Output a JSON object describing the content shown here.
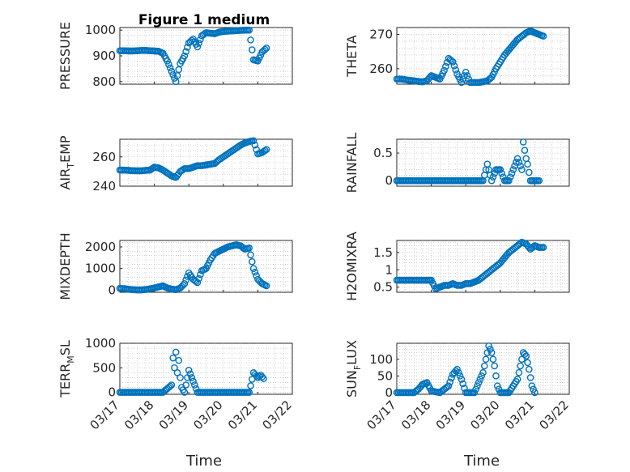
{
  "figure": {
    "title": "Figure 1 medium",
    "xlabel": "Time",
    "date_ticks": [
      "03/17",
      "03/18",
      "03/19",
      "03/20",
      "03/21",
      "03/22"
    ]
  },
  "colors": {
    "marker": "#0072BD",
    "axes": "#262626",
    "grid": "#b8b8b8"
  },
  "chart_data": [
    {
      "type": "scatter",
      "title": "Figure 1 medium",
      "ylabel": "PRESSURE",
      "ylim": [
        790,
        1010
      ],
      "yticks": [
        "800",
        "900",
        "1000"
      ],
      "grid": true,
      "xrange": [
        "03/17",
        "03/22"
      ],
      "x": [
        "03/17 00:00",
        "03/17 03:00",
        "03/17 06:00",
        "03/17 09:00",
        "03/17 12:00",
        "03/17 15:00",
        "03/17 18:00",
        "03/17 21:00",
        "03/18 00:00",
        "03/18 03:00",
        "03/18 06:00",
        "03/18 09:00",
        "03/18 12:00",
        "03/18 15:00",
        "03/18 18:00",
        "03/18 21:00",
        "03/19 00:00",
        "03/19 03:00",
        "03/19 06:00",
        "03/19 09:00",
        "03/19 12:00",
        "03/19 15:00",
        "03/19 18:00",
        "03/19 21:00",
        "03/20 00:00",
        "03/20 03:00",
        "03/20 06:00",
        "03/20 09:00",
        "03/20 12:00",
        "03/20 15:00",
        "03/20 18:00",
        "03/20 21:00",
        "03/21 00:00",
        "03/21 03:00",
        "03/21 06:00"
      ],
      "y": [
        920,
        920,
        919,
        919,
        920,
        921,
        921,
        920,
        919,
        918,
        910,
        880,
        840,
        800,
        870,
        900,
        950,
        965,
        935,
        978,
        990,
        988,
        986,
        992,
        995,
        996,
        997,
        998,
        999,
        1000,
        1000,
        885,
        880,
        915,
        930
      ]
    },
    {
      "type": "scatter",
      "ylabel": "THETA",
      "ylim": [
        255.5,
        272
      ],
      "yticks": [
        "260",
        "270"
      ],
      "grid": true,
      "x": [
        "03/17 00:00",
        "03/17 03:00",
        "03/17 06:00",
        "03/17 09:00",
        "03/17 12:00",
        "03/17 15:00",
        "03/17 18:00",
        "03/17 21:00",
        "03/18 00:00",
        "03/18 03:00",
        "03/18 06:00",
        "03/18 09:00",
        "03/18 12:00",
        "03/18 15:00",
        "03/18 18:00",
        "03/18 21:00",
        "03/19 00:00",
        "03/19 03:00",
        "03/19 06:00",
        "03/19 09:00",
        "03/19 12:00",
        "03/19 15:00",
        "03/19 18:00",
        "03/19 21:00",
        "03/20 00:00",
        "03/20 03:00",
        "03/20 06:00",
        "03/20 09:00",
        "03/20 12:00",
        "03/20 15:00",
        "03/20 18:00",
        "03/20 21:00",
        "03/21 00:00",
        "03/21 03:00",
        "03/21 06:00"
      ],
      "y": [
        257,
        257,
        256.8,
        256.6,
        256.5,
        256.3,
        256.2,
        256.5,
        258,
        257.5,
        257,
        259.5,
        263,
        262,
        258.5,
        256,
        259,
        256,
        256,
        256,
        256.2,
        256.5,
        257.5,
        260,
        262,
        264,
        265.5,
        267,
        268.5,
        269.5,
        270.5,
        271,
        270.5,
        270,
        269.5
      ]
    },
    {
      "type": "scatter",
      "ylabel": "AIR_TEMP",
      "ylim": [
        240,
        272
      ],
      "yticks": [
        "240",
        "260"
      ],
      "grid": true,
      "x": [
        "03/17 00:00",
        "03/17 03:00",
        "03/17 06:00",
        "03/17 09:00",
        "03/17 12:00",
        "03/17 15:00",
        "03/17 18:00",
        "03/17 21:00",
        "03/18 00:00",
        "03/18 03:00",
        "03/18 06:00",
        "03/18 09:00",
        "03/18 12:00",
        "03/18 15:00",
        "03/18 18:00",
        "03/18 21:00",
        "03/19 00:00",
        "03/19 03:00",
        "03/19 06:00",
        "03/19 09:00",
        "03/19 12:00",
        "03/19 15:00",
        "03/19 18:00",
        "03/19 21:00",
        "03/20 00:00",
        "03/20 03:00",
        "03/20 06:00",
        "03/20 09:00",
        "03/20 12:00",
        "03/20 15:00",
        "03/20 18:00",
        "03/20 21:00",
        "03/21 00:00",
        "03/21 03:00",
        "03/21 06:00"
      ],
      "y": [
        251,
        251,
        250.8,
        250.6,
        250.5,
        250.5,
        250.8,
        251,
        253,
        252.5,
        251,
        249,
        247,
        246,
        250,
        252,
        252,
        253,
        254,
        254,
        254.5,
        255,
        255.5,
        258,
        260,
        262,
        264,
        266,
        268,
        269.5,
        270.5,
        271,
        262,
        263,
        265
      ]
    },
    {
      "type": "scatter",
      "ylabel": "RAINFALL",
      "ylim": [
        -0.1,
        0.75
      ],
      "yticks": [
        "0",
        "0.5"
      ],
      "grid": true,
      "x": [
        "03/17 00:00",
        "03/17 06:00",
        "03/17 12:00",
        "03/17 18:00",
        "03/18 00:00",
        "03/18 06:00",
        "03/18 12:00",
        "03/18 18:00",
        "03/19 00:00",
        "03/19 06:00",
        "03/19 12:00",
        "03/19 15:00",
        "03/19 18:00",
        "03/19 21:00",
        "03/20 00:00",
        "03/20 03:00",
        "03/20 06:00",
        "03/20 09:00",
        "03/20 12:00",
        "03/20 15:00",
        "03/20 16:00",
        "03/20 18:00",
        "03/20 19:00",
        "03/20 21:00",
        "03/21 00:00",
        "03/21 03:00"
      ],
      "y": [
        0,
        0,
        0,
        0,
        0,
        0,
        0,
        0,
        0,
        0,
        0,
        0.3,
        0,
        0.2,
        0.2,
        0,
        0,
        0.2,
        0.4,
        0.2,
        0.7,
        0.4,
        0.3,
        0,
        0,
        0
      ]
    },
    {
      "type": "scatter",
      "ylabel": "MIXDEPTH",
      "ylim": [
        -100,
        2300
      ],
      "yticks": [
        "0",
        "1000",
        "2000"
      ],
      "grid": true,
      "x": [
        "03/17 00:00",
        "03/17 03:00",
        "03/17 06:00",
        "03/17 09:00",
        "03/17 12:00",
        "03/17 15:00",
        "03/17 18:00",
        "03/17 21:00",
        "03/18 00:00",
        "03/18 03:00",
        "03/18 06:00",
        "03/18 09:00",
        "03/18 12:00",
        "03/18 15:00",
        "03/18 18:00",
        "03/18 21:00",
        "03/19 00:00",
        "03/19 03:00",
        "03/19 06:00",
        "03/19 09:00",
        "03/19 12:00",
        "03/19 15:00",
        "03/19 18:00",
        "03/19 21:00",
        "03/20 00:00",
        "03/20 03:00",
        "03/20 06:00",
        "03/20 09:00",
        "03/20 12:00",
        "03/20 15:00",
        "03/20 18:00",
        "03/20 21:00",
        "03/21 00:00",
        "03/21 03:00",
        "03/21 06:00"
      ],
      "y": [
        80,
        70,
        40,
        20,
        10,
        10,
        30,
        60,
        100,
        150,
        200,
        100,
        50,
        20,
        100,
        300,
        800,
        500,
        350,
        900,
        1000,
        1400,
        1700,
        1800,
        1900,
        2000,
        2050,
        2100,
        2050,
        1900,
        1950,
        1000,
        500,
        300,
        200
      ]
    },
    {
      "type": "scatter",
      "ylabel": "H2OMIXRA",
      "ylim": [
        0.35,
        1.85
      ],
      "yticks": [
        "0.5",
        "1",
        "1.5"
      ],
      "grid": true,
      "x": [
        "03/17 00:00",
        "03/17 03:00",
        "03/17 06:00",
        "03/17 09:00",
        "03/17 12:00",
        "03/17 15:00",
        "03/17 18:00",
        "03/17 21:00",
        "03/18 00:00",
        "03/18 03:00",
        "03/18 06:00",
        "03/18 09:00",
        "03/18 12:00",
        "03/18 15:00",
        "03/18 18:00",
        "03/18 21:00",
        "03/19 00:00",
        "03/19 03:00",
        "03/19 06:00",
        "03/19 09:00",
        "03/19 12:00",
        "03/19 15:00",
        "03/19 18:00",
        "03/19 21:00",
        "03/20 00:00",
        "03/20 03:00",
        "03/20 06:00",
        "03/20 09:00",
        "03/20 12:00",
        "03/20 15:00",
        "03/20 18:00",
        "03/20 21:00",
        "03/21 00:00",
        "03/21 03:00",
        "03/21 06:00"
      ],
      "y": [
        0.7,
        0.7,
        0.7,
        0.7,
        0.7,
        0.7,
        0.7,
        0.7,
        0.7,
        0.45,
        0.5,
        0.55,
        0.55,
        0.6,
        0.55,
        0.55,
        0.6,
        0.6,
        0.65,
        0.7,
        0.8,
        0.9,
        1.0,
        1.1,
        1.2,
        1.35,
        1.5,
        1.6,
        1.7,
        1.8,
        1.75,
        1.6,
        1.7,
        1.65,
        1.65
      ]
    },
    {
      "type": "scatter",
      "ylabel": "TERR_MSL",
      "ylim": [
        -40,
        1000
      ],
      "yticks": [
        "0",
        "500",
        "1000"
      ],
      "grid": true,
      "x": [
        "03/17 00:00",
        "03/17 06:00",
        "03/17 12:00",
        "03/17 18:00",
        "03/18 00:00",
        "03/18 06:00",
        "03/18 12:00",
        "03/18 13:00",
        "03/18 14:00",
        "03/18 15:00",
        "03/18 16:00",
        "03/18 17:00",
        "03/18 18:00",
        "03/18 19:00",
        "03/18 21:00",
        "03/19 00:00",
        "03/19 06:00",
        "03/19 12:00",
        "03/19 18:00",
        "03/20 00:00",
        "03/20 06:00",
        "03/20 12:00",
        "03/20 18:00",
        "03/20 21:00",
        "03/21 00:00",
        "03/21 02:00",
        "03/21 04:00"
      ],
      "y": [
        0,
        0,
        0,
        0,
        0,
        0,
        150,
        700,
        500,
        820,
        400,
        650,
        300,
        100,
        0,
        450,
        0,
        0,
        0,
        0,
        0,
        0,
        0,
        400,
        300,
        350,
        280
      ]
    },
    {
      "type": "scatter",
      "ylabel": "SUN_FLUX",
      "ylim": [
        -5,
        148
      ],
      "yticks": [
        "0",
        "50",
        "100"
      ],
      "grid": true,
      "x": [
        "03/17 00:00",
        "03/17 06:00",
        "03/17 12:00",
        "03/17 15:00",
        "03/17 18:00",
        "03/17 21:00",
        "03/18 00:00",
        "03/18 06:00",
        "03/18 12:00",
        "03/18 15:00",
        "03/18 18:00",
        "03/18 21:00",
        "03/19 00:00",
        "03/19 06:00",
        "03/19 12:00",
        "03/19 14:00",
        "03/19 16:00",
        "03/19 18:00",
        "03/19 20:00",
        "03/19 22:00",
        "03/20 00:00",
        "03/20 06:00",
        "03/20 12:00",
        "03/20 14:00",
        "03/20 16:00",
        "03/20 18:00",
        "03/20 20:00",
        "03/20 22:00",
        "03/21 00:00"
      ],
      "y": [
        0,
        0,
        0,
        10,
        25,
        30,
        5,
        0,
        20,
        55,
        70,
        40,
        0,
        0,
        60,
        100,
        140,
        120,
        80,
        20,
        0,
        0,
        40,
        80,
        120,
        110,
        70,
        20,
        0
      ]
    }
  ]
}
